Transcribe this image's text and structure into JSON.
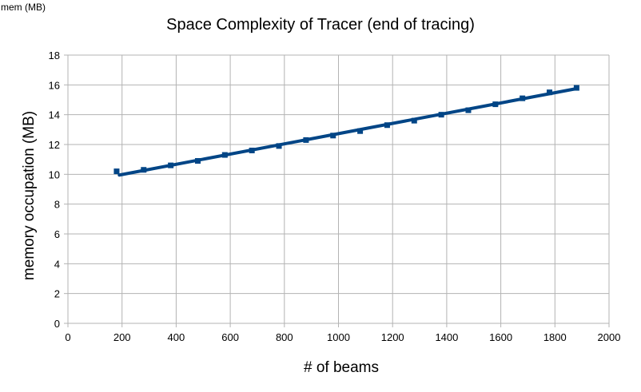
{
  "corner_label": "mem (MB)",
  "chart_data": {
    "type": "line",
    "title": "Space Complexity of Tracer (end of tracing)",
    "xlabel": "# of beams",
    "ylabel": "memory occupation (MB)",
    "xlim": [
      0,
      2000
    ],
    "ylim": [
      0,
      18
    ],
    "xticks": [
      0,
      200,
      400,
      600,
      800,
      1000,
      1200,
      1400,
      1600,
      1800,
      2000
    ],
    "yticks": [
      0,
      2,
      4,
      6,
      8,
      10,
      12,
      14,
      16,
      18
    ],
    "grid": true,
    "series": [
      {
        "color": "#004586",
        "x": [
          180,
          280,
          380,
          480,
          580,
          680,
          780,
          880,
          980,
          1080,
          1180,
          1280,
          1380,
          1480,
          1580,
          1680,
          1780,
          1880
        ],
        "values": [
          10.2,
          10.3,
          10.6,
          10.9,
          11.3,
          11.6,
          11.9,
          12.3,
          12.6,
          12.9,
          13.3,
          13.6,
          14.0,
          14.3,
          14.7,
          15.1,
          15.5,
          15.8
        ]
      }
    ],
    "trendline": {
      "color": "#004586",
      "x": [
        190,
        1880
      ],
      "values": [
        9.95,
        15.75
      ]
    }
  }
}
